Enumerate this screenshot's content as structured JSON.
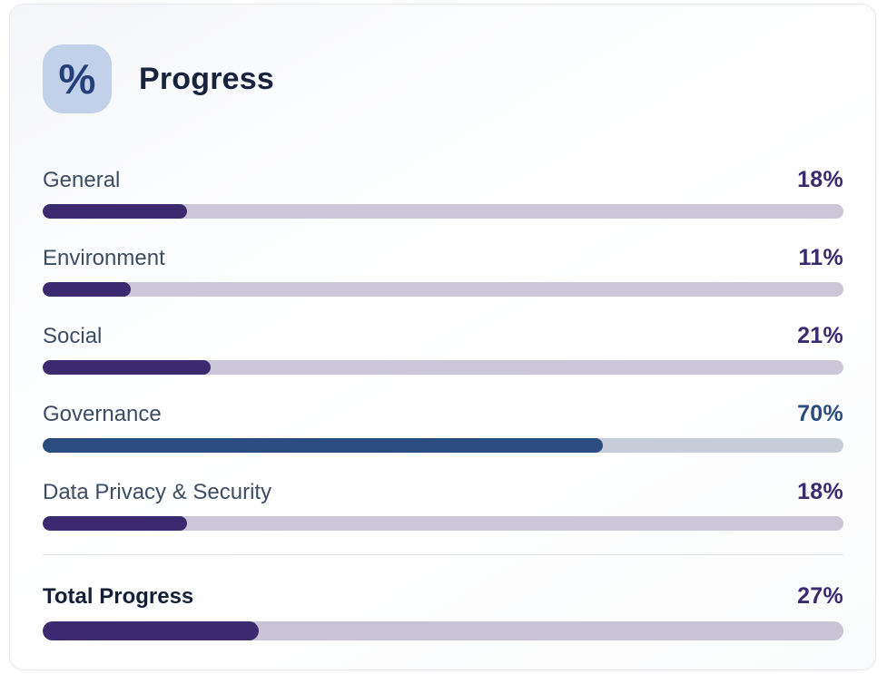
{
  "card": {
    "title": "Progress",
    "icon": "percent-icon",
    "icon_glyph": "%"
  },
  "colors": {
    "icon_background": "#c3d0ea",
    "icon_glyph": "#24407a",
    "title_text": "#18233e",
    "label_text": "#3d4c62",
    "purple_fill": "#3b2a70",
    "purple_track": "#ccc7d8",
    "blue_fill": "#2b4c7e",
    "blue_track": "#c6cdd9",
    "divider": "#e6e7eb",
    "card_border": "#e8e9ed"
  },
  "rows": [
    {
      "label": "General",
      "percent": 18,
      "value_label": "18%",
      "fill": "#3b2a70",
      "track": "#ccc7d8"
    },
    {
      "label": "Environment",
      "percent": 11,
      "value_label": "11%",
      "fill": "#3b2a70",
      "track": "#ccc7d8"
    },
    {
      "label": "Social",
      "percent": 21,
      "value_label": "21%",
      "fill": "#3b2a70",
      "track": "#ccc7d8"
    },
    {
      "label": "Governance",
      "percent": 70,
      "value_label": "70%",
      "fill": "#2b4c7e",
      "track": "#c6cdd9"
    },
    {
      "label": "Data Privacy & Security",
      "percent": 18,
      "value_label": "18%",
      "fill": "#3b2a70",
      "track": "#ccc7d8"
    }
  ],
  "total": {
    "label": "Total Progress",
    "percent": 27,
    "value_label": "27%",
    "fill": "#3b2a70",
    "track": "#c8c3d5"
  },
  "chart_data": {
    "type": "bar",
    "title": "Progress",
    "categories": [
      "General",
      "Environment",
      "Social",
      "Governance",
      "Data Privacy & Security"
    ],
    "values": [
      18,
      11,
      21,
      70,
      18
    ],
    "total": {
      "label": "Total Progress",
      "value": 27
    },
    "unit": "%",
    "value_range": [
      0,
      100
    ]
  }
}
